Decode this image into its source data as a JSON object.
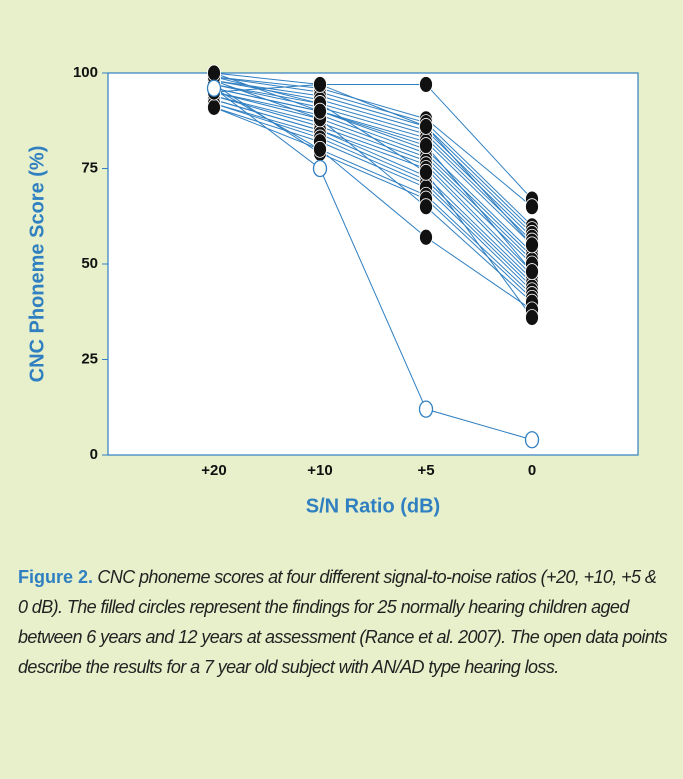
{
  "chart_data": {
    "type": "line",
    "ylabel": "CNC Phoneme Score (%)",
    "xlabel": "S/N Ratio (dB)",
    "categories": [
      "+20",
      "+10",
      "+5",
      "0"
    ],
    "ylim": [
      0,
      100
    ],
    "yticks": [
      0,
      25,
      50,
      75,
      100
    ],
    "line_color": "#2f7fc1",
    "series": [
      {
        "marker": "filled",
        "color": "#111111",
        "values": [
          100,
          97,
          97,
          67
        ]
      },
      {
        "marker": "filled",
        "color": "#111111",
        "values": [
          99,
          96,
          88,
          65
        ]
      },
      {
        "marker": "filled",
        "color": "#111111",
        "values": [
          99,
          95,
          87,
          60
        ]
      },
      {
        "marker": "filled",
        "color": "#111111",
        "values": [
          98,
          94,
          86,
          59
        ]
      },
      {
        "marker": "filled",
        "color": "#111111",
        "values": [
          98,
          93,
          85,
          58
        ]
      },
      {
        "marker": "filled",
        "color": "#111111",
        "values": [
          97,
          92,
          84,
          57
        ]
      },
      {
        "marker": "filled",
        "color": "#111111",
        "values": [
          97,
          91,
          83,
          56
        ]
      },
      {
        "marker": "filled",
        "color": "#111111",
        "values": [
          96,
          90,
          82,
          55
        ]
      },
      {
        "marker": "filled",
        "color": "#111111",
        "values": [
          96,
          90,
          80,
          53
        ]
      },
      {
        "marker": "filled",
        "color": "#111111",
        "values": [
          95,
          89,
          79,
          52
        ]
      },
      {
        "marker": "filled",
        "color": "#111111",
        "values": [
          95,
          88,
          78,
          51
        ]
      },
      {
        "marker": "filled",
        "color": "#111111",
        "values": [
          94,
          87,
          77,
          50
        ]
      },
      {
        "marker": "filled",
        "color": "#111111",
        "values": [
          94,
          86,
          76,
          48
        ]
      },
      {
        "marker": "filled",
        "color": "#111111",
        "values": [
          93,
          85,
          75,
          47
        ]
      },
      {
        "marker": "filled",
        "color": "#111111",
        "values": [
          93,
          85,
          73,
          46
        ]
      },
      {
        "marker": "filled",
        "color": "#111111",
        "values": [
          92,
          84,
          72,
          45
        ]
      },
      {
        "marker": "filled",
        "color": "#111111",
        "values": [
          92,
          83,
          71,
          44
        ]
      },
      {
        "marker": "filled",
        "color": "#111111",
        "values": [
          91,
          82,
          70,
          43
        ]
      },
      {
        "marker": "filled",
        "color": "#111111",
        "values": [
          91,
          80,
          68,
          42
        ]
      },
      {
        "marker": "filled",
        "color": "#111111",
        "values": [
          97,
          79,
          67,
          41
        ]
      },
      {
        "marker": "filled",
        "color": "#111111",
        "values": [
          98,
          88,
          65,
          40
        ]
      },
      {
        "marker": "filled",
        "color": "#111111",
        "values": [
          96,
          80,
          57,
          38
        ]
      },
      {
        "marker": "filled",
        "color": "#111111",
        "values": [
          99,
          92,
          74,
          36
        ]
      },
      {
        "marker": "filled",
        "color": "#111111",
        "values": [
          95,
          97,
          86,
          55
        ]
      },
      {
        "marker": "filled",
        "color": "#111111",
        "values": [
          100,
          90,
          81,
          48
        ]
      },
      {
        "marker": "open",
        "color": "#2f7fc1",
        "values": [
          96,
          75,
          12,
          4
        ]
      }
    ]
  },
  "caption": {
    "label": "Figure 2.",
    "text": "CNC phoneme scores at four different signal-to-noise ratios (+20, +10, +5 & 0 dB). The filled circles represent the findings for 25 normally hearing children aged between 6 years and 12 years at assessment (Rance et al. 2007). The open data points describe the results for a 7 year old subject with AN/AD type hearing loss."
  }
}
